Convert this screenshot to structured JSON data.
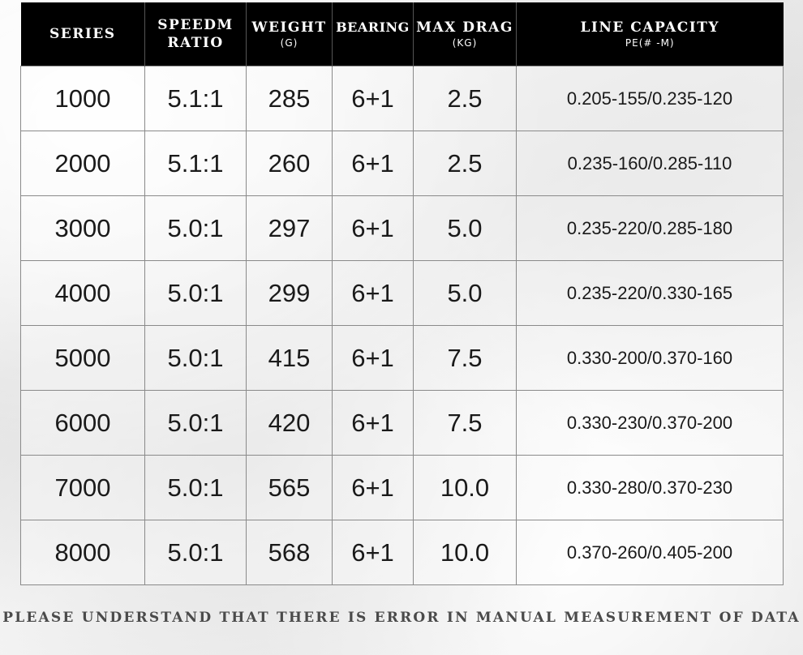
{
  "header": {
    "series": "SERIES",
    "speed_line1": "SPEEDM",
    "speed_line2": "RATIO",
    "weight": "WEIGHT",
    "weight_unit": "(G)",
    "bearing": "BEARING",
    "drag": "MAX DRAG",
    "drag_unit": "(KG)",
    "capacity": "LINE CAPACITY",
    "capacity_unit": "PE(# -M)"
  },
  "rows": [
    {
      "series": "1000",
      "ratio": "5.1:1",
      "weight": "285",
      "bearing": "6+1",
      "drag": "2.5",
      "capacity": "0.205-155/0.235-120"
    },
    {
      "series": "2000",
      "ratio": "5.1:1",
      "weight": "260",
      "bearing": "6+1",
      "drag": "2.5",
      "capacity": "0.235-160/0.285-110"
    },
    {
      "series": "3000",
      "ratio": "5.0:1",
      "weight": "297",
      "bearing": "6+1",
      "drag": "5.0",
      "capacity": "0.235-220/0.285-180"
    },
    {
      "series": "4000",
      "ratio": "5.0:1",
      "weight": "299",
      "bearing": "6+1",
      "drag": "5.0",
      "capacity": "0.235-220/0.330-165"
    },
    {
      "series": "5000",
      "ratio": "5.0:1",
      "weight": "415",
      "bearing": "6+1",
      "drag": "7.5",
      "capacity": "0.330-200/0.370-160"
    },
    {
      "series": "6000",
      "ratio": "5.0:1",
      "weight": "420",
      "bearing": "6+1",
      "drag": "7.5",
      "capacity": "0.330-230/0.370-200"
    },
    {
      "series": "7000",
      "ratio": "5.0:1",
      "weight": "565",
      "bearing": "6+1",
      "drag": "10.0",
      "capacity": "0.330-280/0.370-230"
    },
    {
      "series": "8000",
      "ratio": "5.0:1",
      "weight": "568",
      "bearing": "6+1",
      "drag": "10.0",
      "capacity": "0.370-260/0.405-200"
    }
  ],
  "footer": "PLEASE UNDERSTAND THAT THERE IS ERROR IN MANUAL MEASUREMENT OF DATA",
  "colors": {
    "header_bg": "#000000",
    "header_text": "#ffffff",
    "grid_line": "#8a8a8a",
    "cell_text": "#1a1a1a",
    "footer_text": "#4a4a4a"
  }
}
